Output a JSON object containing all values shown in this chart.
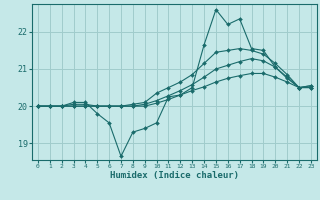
{
  "xlabel": "Humidex (Indice chaleur)",
  "background_color": "#c5e8e8",
  "grid_color": "#a0cccc",
  "line_color": "#1a6b6b",
  "xlim": [
    -0.5,
    23.5
  ],
  "ylim": [
    18.55,
    22.75
  ],
  "yticks": [
    19,
    20,
    21,
    22
  ],
  "xticks": [
    0,
    1,
    2,
    3,
    4,
    5,
    6,
    7,
    8,
    9,
    10,
    11,
    12,
    13,
    14,
    15,
    16,
    17,
    18,
    19,
    20,
    21,
    22,
    23
  ],
  "lines": [
    {
      "x": [
        0,
        1,
        2,
        3,
        4,
        5,
        6,
        7,
        8,
        9,
        10,
        11,
        12,
        13,
        14,
        15,
        16,
        17,
        18,
        19,
        20,
        21,
        22,
        23
      ],
      "y": [
        20.0,
        20.0,
        20.0,
        20.1,
        20.1,
        19.8,
        19.55,
        18.65,
        19.3,
        19.4,
        19.55,
        20.25,
        20.3,
        20.5,
        21.65,
        22.6,
        22.2,
        22.35,
        21.55,
        21.5,
        21.05,
        20.75,
        20.5,
        20.55
      ]
    },
    {
      "x": [
        0,
        1,
        2,
        3,
        4,
        5,
        6,
        7,
        8,
        9,
        10,
        11,
        12,
        13,
        14,
        15,
        16,
        17,
        18,
        19,
        20,
        21,
        22,
        23
      ],
      "y": [
        20.0,
        20.0,
        20.0,
        20.05,
        20.05,
        20.0,
        20.0,
        20.0,
        20.05,
        20.1,
        20.35,
        20.5,
        20.65,
        20.85,
        21.15,
        21.45,
        21.5,
        21.55,
        21.5,
        21.4,
        21.15,
        20.85,
        20.5,
        20.55
      ]
    },
    {
      "x": [
        0,
        1,
        2,
        3,
        4,
        5,
        6,
        7,
        8,
        9,
        10,
        11,
        12,
        13,
        14,
        15,
        16,
        17,
        18,
        19,
        20,
        21,
        22,
        23
      ],
      "y": [
        20.0,
        20.0,
        20.0,
        20.0,
        20.0,
        20.0,
        20.0,
        20.0,
        20.0,
        20.05,
        20.15,
        20.28,
        20.42,
        20.58,
        20.78,
        21.0,
        21.1,
        21.2,
        21.28,
        21.22,
        21.05,
        20.78,
        20.5,
        20.5
      ]
    },
    {
      "x": [
        0,
        1,
        2,
        3,
        4,
        5,
        6,
        7,
        8,
        9,
        10,
        11,
        12,
        13,
        14,
        15,
        16,
        17,
        18,
        19,
        20,
        21,
        22,
        23
      ],
      "y": [
        20.0,
        20.0,
        20.0,
        20.0,
        20.0,
        20.0,
        20.0,
        20.0,
        20.0,
        20.0,
        20.08,
        20.18,
        20.3,
        20.42,
        20.52,
        20.65,
        20.75,
        20.82,
        20.88,
        20.88,
        20.78,
        20.65,
        20.5,
        20.5
      ]
    }
  ]
}
